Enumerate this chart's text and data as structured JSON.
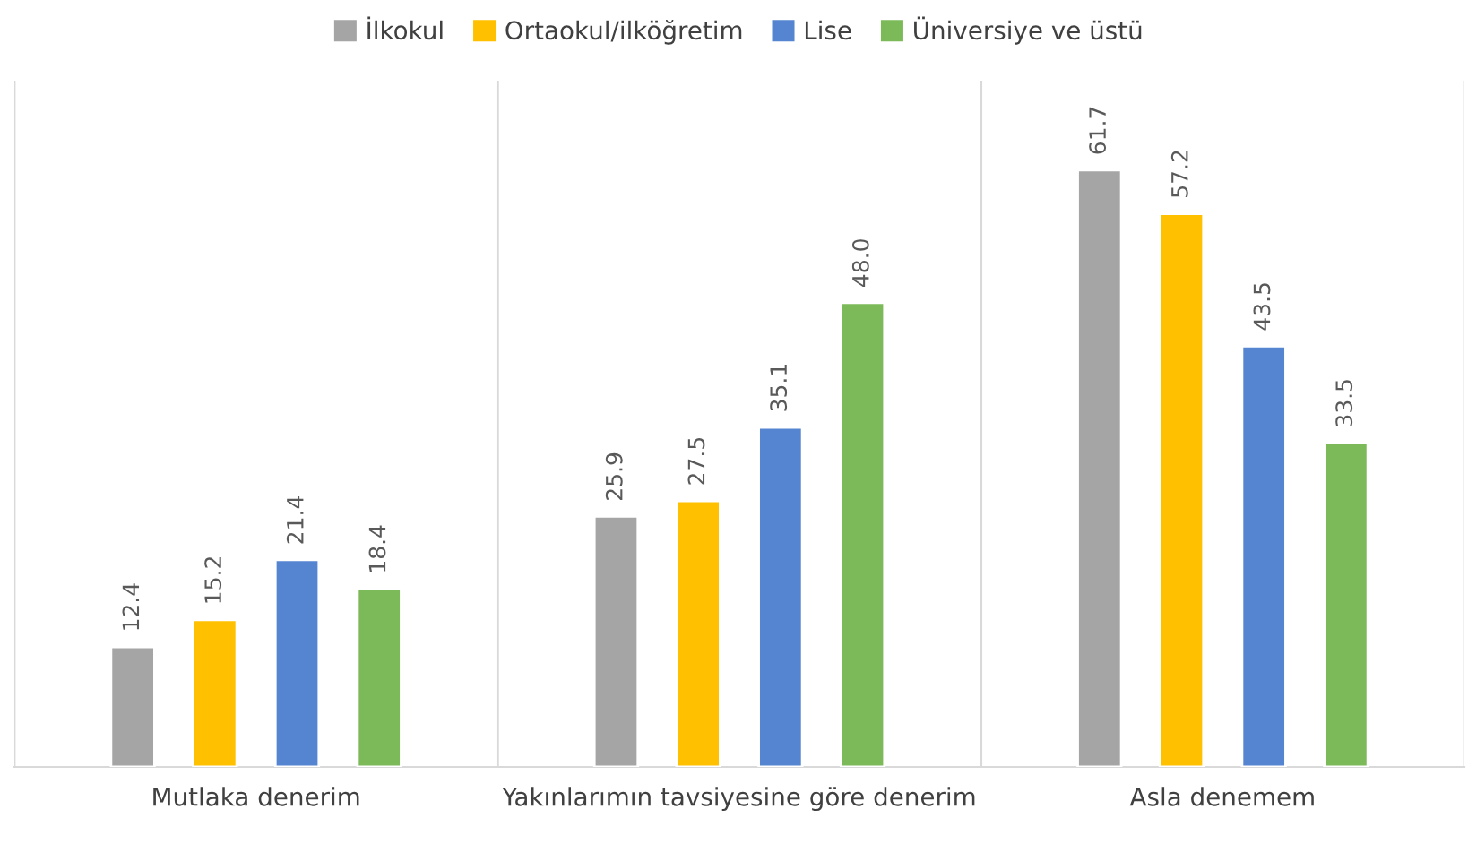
{
  "chart_data": {
    "type": "bar",
    "categories": [
      "Mutlaka denerim",
      "Yakınlarımın tavsiyesine göre denerim",
      "Asla denemem"
    ],
    "series": [
      {
        "name": "İlkokul",
        "color": "#a5a5a5",
        "values": [
          12.4,
          25.9,
          61.7
        ],
        "value_labels": [
          "12.4",
          "25.9",
          "61.7"
        ]
      },
      {
        "name": "Ortaokul/ilköğretim",
        "color": "#ffc000",
        "values": [
          15.2,
          27.5,
          57.2
        ],
        "value_labels": [
          "15.2",
          "27.5",
          "57.2"
        ]
      },
      {
        "name": "Lise",
        "color": "#5585d0",
        "values": [
          21.4,
          35.1,
          43.5
        ],
        "value_labels": [
          "21.4",
          "35.1",
          "43.5"
        ]
      },
      {
        "name": "Üniversiye ve üstü",
        "color": "#7cba59",
        "values": [
          18.4,
          48.0,
          33.5
        ],
        "value_labels": [
          "18.4",
          "48.0",
          "33.5"
        ]
      }
    ],
    "grid": "x",
    "legend": "top",
    "tick_labels": "x"
  }
}
